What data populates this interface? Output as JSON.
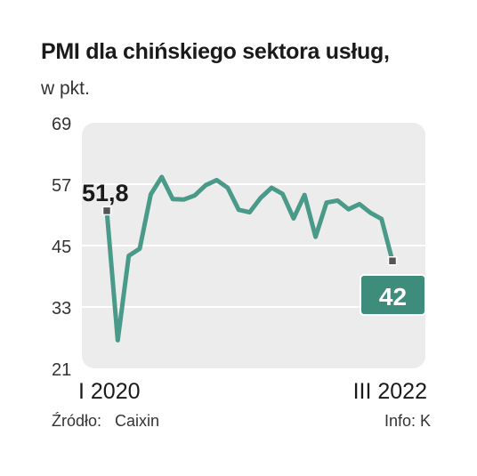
{
  "header": {
    "title": "PMI dla chińskiego sektora usług,",
    "subtitle": "w pkt."
  },
  "footer": {
    "source_label": "Źródło:",
    "source_value": "Caixin",
    "credit": "Info: K"
  },
  "colors": {
    "line": "#4a9a8a",
    "plot_bg": "#ececec",
    "callout_bg": "#3d8c7c",
    "marker": "#555555",
    "grid": "#ffffff"
  },
  "chart_data": {
    "type": "line",
    "title": "PMI dla chińskiego sektora usług,",
    "subtitle": "w pkt.",
    "x_start_label": "I 2020",
    "x_end_label": "III 2022",
    "ylim": [
      21,
      69
    ],
    "yticks": [
      21,
      33,
      45,
      57,
      69
    ],
    "grid": true,
    "x": [
      "I 2020",
      "II 2020",
      "III 2020",
      "IV 2020",
      "V 2020",
      "VI 2020",
      "VII 2020",
      "VIII 2020",
      "IX 2020",
      "X 2020",
      "XI 2020",
      "XII 2020",
      "I 2021",
      "II 2021",
      "III 2021",
      "IV 2021",
      "V 2021",
      "VI 2021",
      "VII 2021",
      "VIII 2021",
      "IX 2021",
      "X 2021",
      "XI 2021",
      "XII 2021",
      "I 2022",
      "II 2022",
      "III 2022"
    ],
    "values": [
      51.8,
      26.5,
      43,
      44.4,
      55,
      58.4,
      54.1,
      54,
      54.8,
      56.8,
      57.8,
      56.3,
      52,
      51.5,
      54.3,
      56.3,
      55.1,
      50.3,
      54.9,
      46.7,
      53.4,
      53.8,
      52.1,
      53.1,
      51.4,
      50.2,
      42
    ],
    "first_label": "51,8",
    "last_label": "42"
  }
}
